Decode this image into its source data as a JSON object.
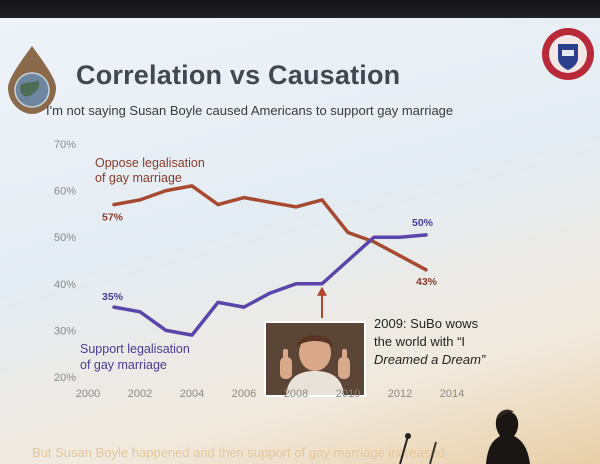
{
  "slide": {
    "title": "Correlation vs Causation",
    "subtitle": "I'm not saying Susan Boyle caused Americans to support gay marriage",
    "footer": "But Susan Boyle happened and then support of gay marriage increased",
    "callout": {
      "line1": "2009: SuBo wows",
      "line2": "the world with “I",
      "line3": "Dreamed a Dream”",
      "x": 2009
    },
    "icons": {
      "left": "globe-logo-icon",
      "right": "university-crest-icon",
      "photo": "susan-boyle-photo"
    }
  },
  "chart_data": {
    "type": "line",
    "x_ticks": [
      2000,
      2002,
      2004,
      2006,
      2008,
      2010,
      2012,
      2014
    ],
    "y_ticks": [
      "20%",
      "30%",
      "40%",
      "50%",
      "60%",
      "70%"
    ],
    "xlim": [
      2000,
      2014
    ],
    "ylim": [
      20,
      70
    ],
    "grid": false,
    "series": [
      {
        "name_line1": "Oppose legalisation",
        "name_line2": "of gay marriage",
        "color": "#a84a32",
        "x": [
          2001,
          2002,
          2003,
          2004,
          2005,
          2006,
          2007,
          2008,
          2009,
          2010,
          2011,
          2012,
          2013
        ],
        "values": [
          57,
          58,
          60,
          61,
          57,
          58.5,
          57.5,
          56.5,
          58,
          51,
          49,
          46,
          43
        ],
        "start_label": "57%",
        "end_label": "43%"
      },
      {
        "name_line1": "Support legalisation",
        "name_line2": "of gay marriage",
        "color": "#5a46aa",
        "x": [
          2001,
          2002,
          2003,
          2004,
          2005,
          2006,
          2007,
          2008,
          2009,
          2010,
          2011,
          2012,
          2013
        ],
        "values": [
          35,
          34,
          30,
          29,
          36,
          35,
          38,
          40,
          40,
          45,
          50,
          50,
          50.5
        ],
        "start_label": "35%",
        "end_label": "50%"
      }
    ]
  }
}
